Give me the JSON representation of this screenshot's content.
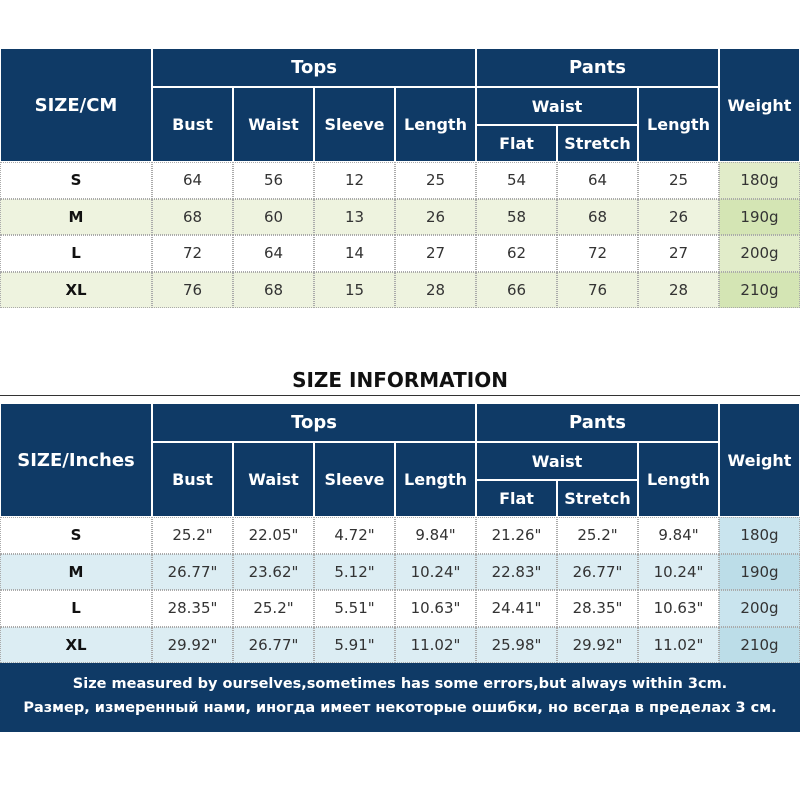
{
  "table_cm": {
    "corner": "SIZE/CM",
    "tops": "Tops",
    "pants": "Pants",
    "waist_group": "Waist",
    "weight": "Weight",
    "columns": [
      "Bust",
      "Waist",
      "Sleeve",
      "Length",
      "Flat",
      "Stretch",
      "Length"
    ],
    "rows": [
      [
        "S",
        64,
        56,
        12,
        25,
        54,
        64,
        25,
        "180g"
      ],
      [
        "M",
        68,
        60,
        13,
        26,
        58,
        68,
        26,
        "190g"
      ],
      [
        "L",
        72,
        64,
        14,
        27,
        62,
        72,
        27,
        "200g"
      ],
      [
        "XL",
        76,
        68,
        15,
        28,
        66,
        76,
        28,
        "210g"
      ]
    ]
  },
  "title": "SIZE INFORMATION",
  "table_inches": {
    "corner": "SIZE/Inches",
    "tops": "Tops",
    "pants": "Pants",
    "waist_group": "Waist",
    "weight": "Weight",
    "columns": [
      "Bust",
      "Waist",
      "Sleeve",
      "Length",
      "Flat",
      "Stretch",
      "Length"
    ],
    "rows": [
      [
        "S",
        "25.2\"",
        "22.05\"",
        "4.72\"",
        "9.84\"",
        "21.26\"",
        "25.2\"",
        "9.84\"",
        "180g"
      ],
      [
        "M",
        "26.77\"",
        "23.62\"",
        "5.12\"",
        "10.24\"",
        "22.83\"",
        "26.77\"",
        "10.24\"",
        "190g"
      ],
      [
        "L",
        "28.35\"",
        "25.2\"",
        "5.51\"",
        "10.63\"",
        "24.41\"",
        "28.35\"",
        "10.63\"",
        "200g"
      ],
      [
        "XL",
        "29.92\"",
        "26.77\"",
        "5.91\"",
        "11.02\"",
        "25.98\"",
        "29.92\"",
        "11.02\"",
        "210g"
      ]
    ]
  },
  "footer": [
    "Size measured by ourselves,sometimes has some errors,but always within 3cm.",
    "Размер, измеренный нами, иногда имеет некоторые ошибки, но всегда в пределах 3 см."
  ]
}
